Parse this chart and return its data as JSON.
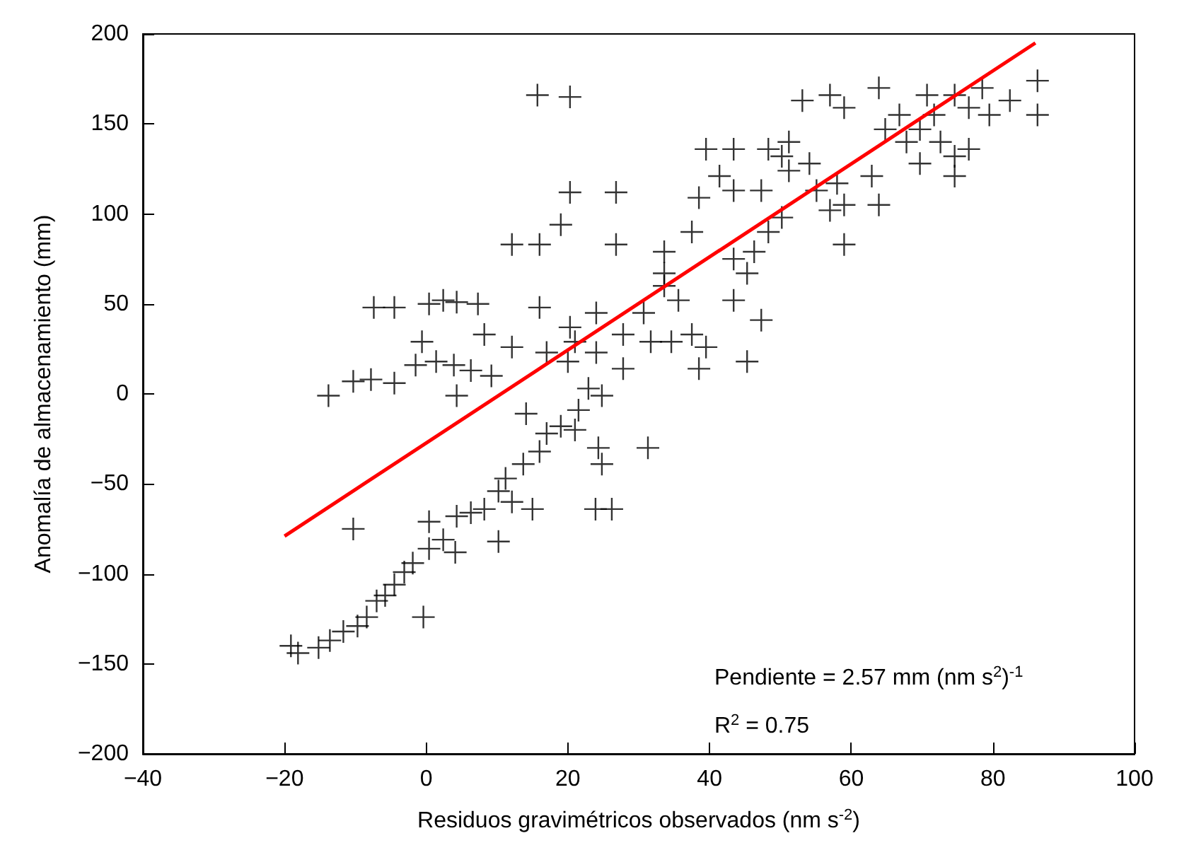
{
  "chart_data": {
    "type": "scatter",
    "xlabel": "Residuos gravimétricos observados (nm s$^{-2}$)",
    "ylabel": "Anomalía de almacenamiento (mm)",
    "xlim": [
      -40,
      100
    ],
    "xticks": [
      {
        "value": -40,
        "label": "−40"
      },
      {
        "value": -20,
        "label": "−20"
      },
      0,
      20,
      40,
      60,
      80,
      100
    ],
    "ylim": [
      -200,
      200
    ],
    "yticks": [
      {
        "value": -200,
        "label": "−200"
      },
      {
        "value": -150,
        "label": "−150"
      },
      {
        "value": -100,
        "label": "−100"
      },
      {
        "value": -50,
        "label": "−50"
      },
      0,
      50,
      100,
      150,
      200
    ],
    "grid": false,
    "marker": "cross",
    "annotations": [
      "Pendiente = 2.57 mm (nm s$^{2}$)$^{-1}$",
      "R$^{2}$ = 0.75"
    ],
    "series": [
      {
        "color": "#000000",
        "x": [
          -19.1,
          -18.1,
          -15.2,
          -13.6,
          -11.7,
          -9.7,
          -8.4,
          -7,
          -5.8,
          -4.5,
          -3.1,
          -1.9,
          -10.3,
          -0.4,
          0.4,
          2.4,
          4.1,
          0.4,
          4.3,
          6.3,
          8.2,
          10.2,
          11.2,
          12.1,
          15,
          10.2,
          13.7,
          16,
          17,
          19,
          21,
          21.5,
          22.9,
          24.8,
          23.9,
          26.2,
          24.8,
          24.3,
          31.3,
          14.1,
          27.8,
          -13.8,
          -10.3,
          -7.8,
          -4.5,
          -1.5,
          1.4,
          3.9,
          6.3,
          9.2,
          0.4,
          2.4,
          4.3,
          -4.5,
          -7.4,
          7.3,
          -0.6,
          4.3,
          8.2,
          12.1,
          16,
          19,
          20.3,
          15.7,
          20.3,
          26.8,
          26.8,
          33.6,
          33.6,
          30.7,
          24,
          20.3,
          16,
          12.1,
          17,
          20,
          21,
          24,
          27.8,
          31.7,
          34.6,
          37.5,
          39.5,
          38.5,
          45.3,
          35.6,
          33.6,
          37.5,
          38.5,
          43.4,
          41.4,
          47.3,
          48.3,
          46.3,
          43.4,
          45.3,
          43.4,
          48.3,
          50.2,
          51.2,
          54.1,
          55.1,
          58,
          59,
          57,
          53.1,
          57,
          59,
          63.9,
          62.9,
          63.9,
          66.8,
          69.7,
          70.7,
          71.7,
          74.6,
          76.6,
          78.5,
          79.5,
          82.4,
          86.3,
          86.3,
          69.7,
          74.6,
          74.6,
          72.6,
          76.6,
          64.8,
          67.8,
          51.2,
          50.2,
          59,
          43.4,
          47.3,
          39.5
        ],
        "values": [
          -140,
          -144,
          -141,
          -137,
          -132,
          -129,
          -124,
          -115,
          -112,
          -106,
          -99,
          -94,
          -75,
          -124,
          -86,
          -81,
          -88,
          -71,
          -68,
          -66,
          -64,
          -54,
          -47,
          -60,
          -64,
          -82,
          -39,
          -32,
          -22,
          -18,
          -20,
          -9,
          3,
          -1,
          -64,
          -64,
          -39,
          -30,
          -30,
          -11,
          14,
          -1,
          7,
          8,
          6,
          16,
          18,
          16,
          13,
          10,
          50,
          52,
          51,
          48,
          48,
          50,
          29,
          -1,
          33,
          83,
          83,
          94,
          112,
          166,
          165,
          112,
          83,
          79,
          60,
          45,
          45,
          37,
          48,
          26,
          23,
          18,
          29,
          23,
          33,
          29,
          29,
          33,
          26,
          14,
          18,
          52,
          67,
          90,
          109,
          113,
          121,
          113,
          90,
          79,
          75,
          67,
          136,
          136,
          132,
          124,
          128,
          113,
          117,
          105,
          102,
          163,
          166,
          159,
          170,
          121,
          105,
          155,
          147,
          166,
          155,
          166,
          159,
          170,
          155,
          163,
          174,
          155,
          128,
          132,
          121,
          140,
          136,
          147,
          140,
          140,
          98,
          83,
          52,
          41,
          136
        ]
      },
      {
        "type": "line",
        "marker": "none",
        "color": "#ff0000",
        "x": [
          -20,
          86
        ],
        "values": [
          -79,
          195
        ]
      }
    ]
  }
}
